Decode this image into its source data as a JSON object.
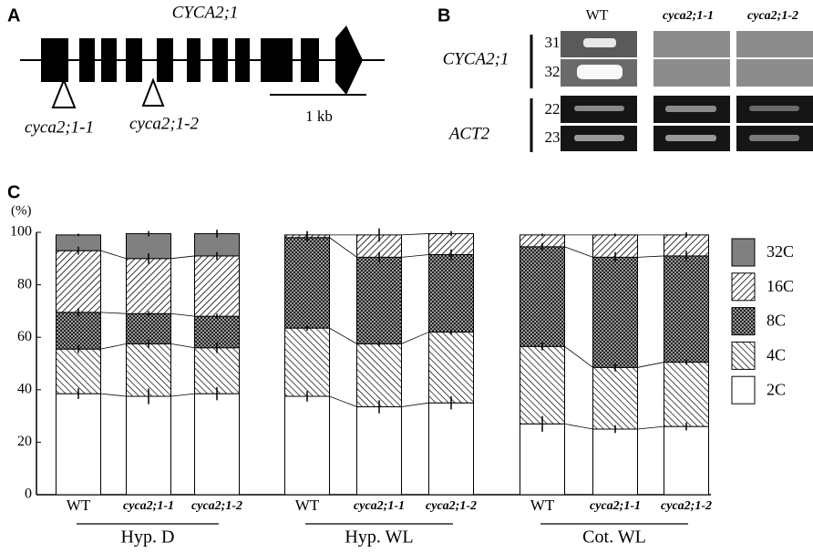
{
  "panel_a": {
    "label": "A",
    "gene": "CYCA2;1",
    "alleles": [
      "cyca2;1-1",
      "cyca2;1-2"
    ],
    "scale": "1 kb"
  },
  "panel_b": {
    "label": "B",
    "columns": [
      "WT",
      "cyca2;1-1",
      "cyca2;1-2"
    ],
    "genes": [
      "CYCA2;1",
      "ACT2"
    ],
    "cycles": [
      "31",
      "32",
      "22",
      "23"
    ]
  },
  "chart_data": {
    "type": "stacked-bar",
    "panel_label": "C",
    "ylabel": "(%)",
    "categories": [
      "WT",
      "cyca2;1-1",
      "cyca2;1-2",
      "WT",
      "cyca2;1-1",
      "cyca2;1-2",
      "WT",
      "cyca2;1-1",
      "cyca2;1-2"
    ],
    "groups": [
      "Hyp. D",
      "Hyp. WL",
      "Cot. WL"
    ],
    "ylim": [
      0,
      100
    ],
    "yticks": [
      0,
      20,
      40,
      60,
      80,
      100
    ],
    "series": [
      {
        "name": "2C",
        "color": "#ffffff",
        "pattern": "none",
        "values": [
          38.5,
          37.5,
          38.5,
          37.5,
          33.5,
          35,
          27,
          25,
          26
        ],
        "errors": [
          2,
          3,
          2.5,
          2,
          2.5,
          2.5,
          3,
          1.5,
          1.5
        ]
      },
      {
        "name": "4C",
        "color": "#000000",
        "pattern": "hatch-b",
        "values": [
          17,
          20,
          17.5,
          26,
          24,
          27,
          29.5,
          23.5,
          24.5
        ],
        "errors": [
          1.5,
          1.5,
          2,
          1,
          1,
          1,
          1.5,
          1.5,
          1
        ]
      },
      {
        "name": "8C",
        "color": "#000000",
        "pattern": "checker",
        "values": [
          14,
          11.5,
          12,
          34.5,
          33,
          29.5,
          38,
          42,
          40.5
        ],
        "errors": [
          1.5,
          1,
          1,
          1.5,
          2,
          2,
          1.5,
          2,
          2
        ]
      },
      {
        "name": "16C",
        "color": "#000000",
        "pattern": "hatch-a",
        "values": [
          23.5,
          21,
          23,
          1,
          8.5,
          8,
          4.5,
          8.5,
          8
        ],
        "errors": [
          1.5,
          2,
          1.5,
          1.5,
          2.5,
          1,
          0.5,
          0.5,
          1
        ]
      },
      {
        "name": "32C",
        "color": "#808080",
        "pattern": "solid",
        "values": [
          6,
          9.5,
          8.5,
          0,
          0,
          0,
          0,
          0,
          0
        ],
        "errors": [
          0.5,
          1,
          1.5,
          null,
          null,
          null,
          null,
          null,
          null
        ]
      }
    ]
  }
}
